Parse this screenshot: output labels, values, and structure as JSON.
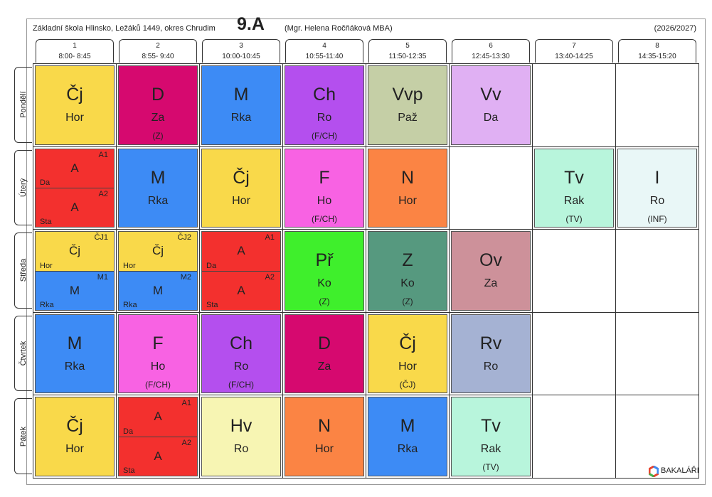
{
  "header": {
    "school": "Základní škola Hlinsko, Ležáků 1449, okres Chrudim",
    "class": "9.A",
    "teacher": "(Mgr. Helena Ročňáková MBA)",
    "year": "(2026/2027)"
  },
  "periods": [
    {
      "num": "1",
      "time": "8:00- 8:45"
    },
    {
      "num": "2",
      "time": "8:55- 9:40"
    },
    {
      "num": "3",
      "time": "10:00-10:45"
    },
    {
      "num": "4",
      "time": "10:55-11:40"
    },
    {
      "num": "5",
      "time": "11:50-12:35"
    },
    {
      "num": "6",
      "time": "12:45-13:30"
    },
    {
      "num": "7",
      "time": "13:40-14:25"
    },
    {
      "num": "8",
      "time": "14:35-15:20"
    }
  ],
  "days": [
    {
      "name": "Pondělí",
      "lessons": [
        {
          "subject": "Čj",
          "teacher": "Hor",
          "color": "#f9d94a"
        },
        {
          "subject": "D",
          "teacher": "Za",
          "room": "(Z)",
          "color": "#d6096f"
        },
        {
          "subject": "M",
          "teacher": "Rka",
          "color": "#3d8bf5"
        },
        {
          "subject": "Ch",
          "teacher": "Ro",
          "room": "(F/CH)",
          "color": "#b44fee"
        },
        {
          "subject": "Vvp",
          "teacher": "Paž",
          "color": "#c5cfa6"
        },
        {
          "subject": "Vv",
          "teacher": "Da",
          "color": "#e0b0f3"
        },
        null,
        null
      ]
    },
    {
      "name": "Úterý",
      "lessons": [
        {
          "groups": [
            {
              "group": "A1",
              "subject": "A",
              "teacher": "Da",
              "color": "#f3302e"
            },
            {
              "group": "A2",
              "subject": "A",
              "teacher": "Sta",
              "color": "#f3302e"
            }
          ]
        },
        {
          "subject": "M",
          "teacher": "Rka",
          "color": "#3d8bf5"
        },
        {
          "subject": "Čj",
          "teacher": "Hor",
          "color": "#f9d94a"
        },
        {
          "subject": "F",
          "teacher": "Ho",
          "room": "(F/CH)",
          "color": "#f862e3"
        },
        {
          "subject": "N",
          "teacher": "Hor",
          "color": "#fb8444"
        },
        null,
        {
          "subject": "Tv",
          "teacher": "Rak",
          "room": "(TV)",
          "color": "#b8f5dc"
        },
        {
          "subject": "I",
          "teacher": "Ro",
          "room": "(INF)",
          "color": "#e9f7f7"
        }
      ]
    },
    {
      "name": "Středa",
      "lessons": [
        {
          "groups": [
            {
              "group": "ČJ1",
              "subject": "Čj",
              "teacher": "Hor",
              "color": "#f9d94a"
            },
            {
              "group": "M1",
              "subject": "M",
              "teacher": "Rka",
              "color": "#3d8bf5"
            }
          ]
        },
        {
          "groups": [
            {
              "group": "ČJ2",
              "subject": "Čj",
              "teacher": "Hor",
              "color": "#f9d94a"
            },
            {
              "group": "M2",
              "subject": "M",
              "teacher": "Rka",
              "color": "#3d8bf5"
            }
          ]
        },
        {
          "groups": [
            {
              "group": "A1",
              "subject": "A",
              "teacher": "Da",
              "color": "#f3302e"
            },
            {
              "group": "A2",
              "subject": "A",
              "teacher": "Sta",
              "color": "#f3302e"
            }
          ]
        },
        {
          "subject": "Př",
          "teacher": "Ko",
          "room": "(Z)",
          "color": "#3fef2c"
        },
        {
          "subject": "Z",
          "teacher": "Ko",
          "room": "(Z)",
          "color": "#56997f"
        },
        {
          "subject": "Ov",
          "teacher": "Za",
          "color": "#cd919a"
        },
        null,
        null
      ]
    },
    {
      "name": "Čtvrtek",
      "lessons": [
        {
          "subject": "M",
          "teacher": "Rka",
          "color": "#3d8bf5"
        },
        {
          "subject": "F",
          "teacher": "Ho",
          "room": "(F/CH)",
          "color": "#f862e3"
        },
        {
          "subject": "Ch",
          "teacher": "Ro",
          "room": "(F/CH)",
          "color": "#b44fee"
        },
        {
          "subject": "D",
          "teacher": "Za",
          "color": "#d6096f"
        },
        {
          "subject": "Čj",
          "teacher": "Hor",
          "room": "(ČJ)",
          "color": "#f9d94a"
        },
        {
          "subject": "Rv",
          "teacher": "Ro",
          "color": "#a5b2d3"
        },
        null,
        null
      ]
    },
    {
      "name": "Pátek",
      "lessons": [
        {
          "subject": "Čj",
          "teacher": "Hor",
          "color": "#f9d94a"
        },
        {
          "groups": [
            {
              "group": "A1",
              "subject": "A",
              "teacher": "Da",
              "color": "#f3302e"
            },
            {
              "group": "A2",
              "subject": "A",
              "teacher": "Sta",
              "color": "#f3302e"
            }
          ]
        },
        {
          "subject": "Hv",
          "teacher": "Ro",
          "color": "#f7f5b3"
        },
        {
          "subject": "N",
          "teacher": "Hor",
          "color": "#fb8444"
        },
        {
          "subject": "M",
          "teacher": "Rka",
          "color": "#3d8bf5"
        },
        {
          "subject": "Tv",
          "teacher": "Rak",
          "room": "(TV)",
          "color": "#b8f5dc"
        },
        null,
        null
      ]
    }
  ],
  "footer": {
    "logo": "BAKALÁŘI"
  }
}
